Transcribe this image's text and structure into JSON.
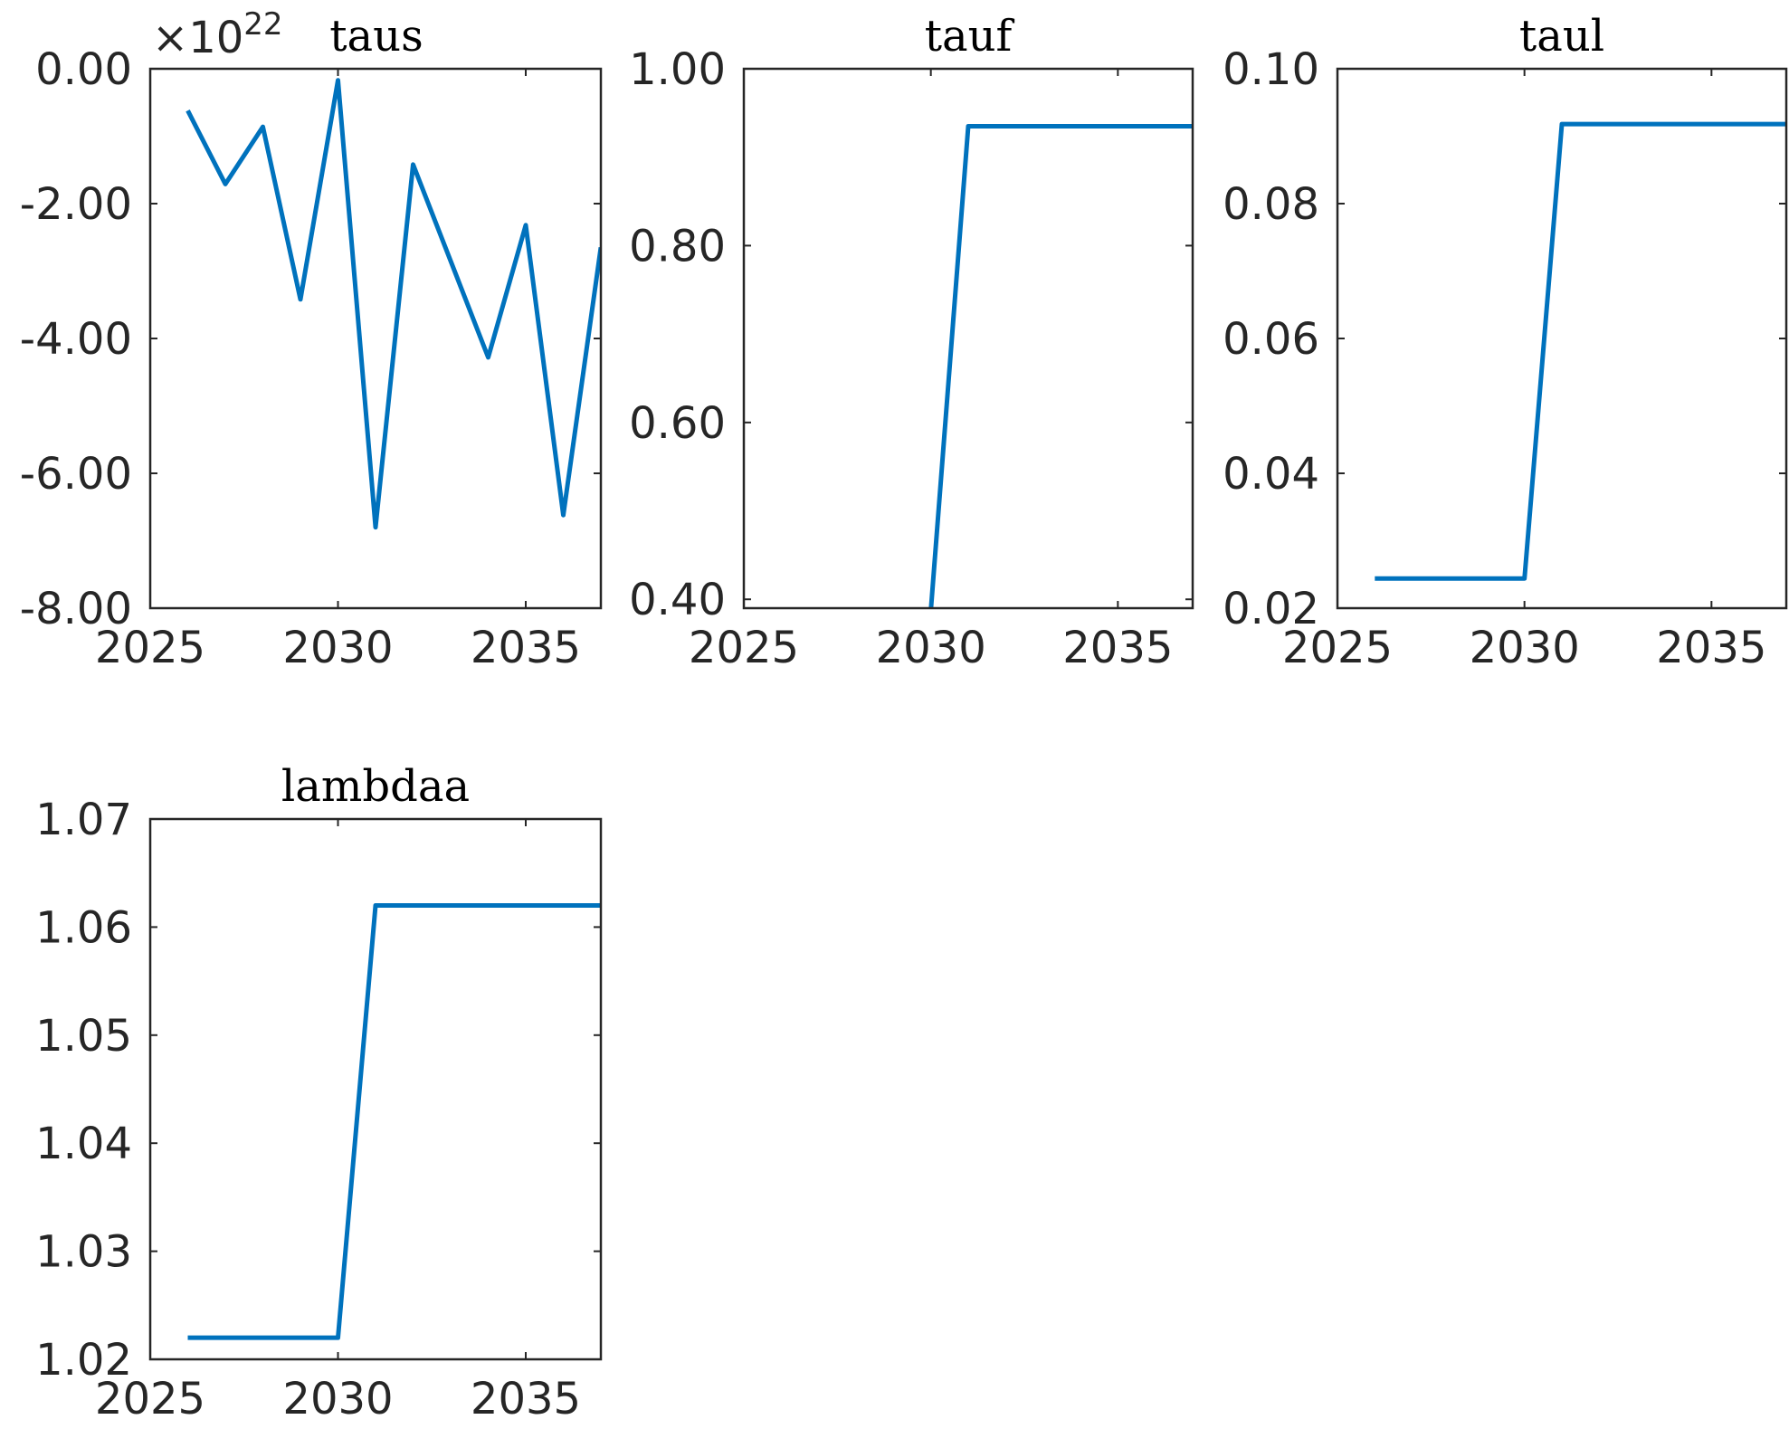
{
  "chart_data": [
    {
      "type": "line",
      "title": "taus",
      "exponent_label": "×10",
      "exponent_power": "22",
      "x": [
        2026,
        2027,
        2028,
        2029,
        2030,
        2031,
        2032,
        2033,
        2034,
        2035,
        2036,
        2037
      ],
      "series": [
        {
          "values": [
            -0.62,
            -1.71,
            -0.86,
            -3.42,
            -0.17,
            -6.8,
            -1.42,
            -2.85,
            -4.28,
            -2.32,
            -6.62,
            -2.65
          ]
        }
      ],
      "xlim": [
        2025,
        2037
      ],
      "ylim": [
        -8,
        0
      ],
      "xticks": [
        2025,
        2030,
        2035
      ],
      "xtick_labels": [
        "2025",
        "2030",
        "2035"
      ],
      "yticks": [
        0,
        -2,
        -4,
        -6,
        -8
      ],
      "ytick_labels": [
        "0.00",
        "-2.00",
        "-4.00",
        "-6.00",
        "-8.00"
      ],
      "xlabel": "",
      "ylabel": "",
      "grid": false,
      "line_color": "#0072BD"
    },
    {
      "type": "line",
      "title": "tauf",
      "x": [
        2026,
        2027,
        2028,
        2029,
        2030,
        2031,
        2032,
        2033,
        2034,
        2035,
        2036,
        2037
      ],
      "series": [
        {
          "values": [
            0.388,
            0.388,
            0.388,
            0.388,
            0.388,
            0.935,
            0.935,
            0.935,
            0.935,
            0.935,
            0.935,
            0.935
          ]
        }
      ],
      "xlim": [
        2025,
        2037
      ],
      "ylim": [
        0.39,
        1.0
      ],
      "xticks": [
        2025,
        2030,
        2035
      ],
      "xtick_labels": [
        "2025",
        "2030",
        "2035"
      ],
      "yticks": [
        1.0,
        0.8,
        0.6,
        0.4
      ],
      "ytick_labels": [
        "1.00",
        "0.80",
        "0.60",
        "0.40"
      ],
      "xlabel": "",
      "ylabel": "",
      "grid": false,
      "line_color": "#0072BD"
    },
    {
      "type": "line",
      "title": "taul",
      "x": [
        2026,
        2027,
        2028,
        2029,
        2030,
        2031,
        2032,
        2033,
        2034,
        2035,
        2036,
        2037
      ],
      "series": [
        {
          "values": [
            0.0244,
            0.0244,
            0.0244,
            0.0244,
            0.0244,
            0.0918,
            0.0918,
            0.0918,
            0.0918,
            0.0918,
            0.0918,
            0.0918
          ]
        }
      ],
      "xlim": [
        2025,
        2037
      ],
      "ylim": [
        0.02,
        0.1
      ],
      "xticks": [
        2025,
        2030,
        2035
      ],
      "xtick_labels": [
        "2025",
        "2030",
        "2035"
      ],
      "yticks": [
        0.1,
        0.08,
        0.06,
        0.04,
        0.02
      ],
      "ytick_labels": [
        "0.10",
        "0.08",
        "0.06",
        "0.04",
        "0.02"
      ],
      "xlabel": "",
      "ylabel": "",
      "grid": false,
      "line_color": "#0072BD"
    },
    {
      "type": "line",
      "title": "lambdaa",
      "x": [
        2026,
        2027,
        2028,
        2029,
        2030,
        2031,
        2032,
        2033,
        2034,
        2035,
        2036,
        2037
      ],
      "series": [
        {
          "values": [
            1.022,
            1.022,
            1.022,
            1.022,
            1.022,
            1.062,
            1.062,
            1.062,
            1.062,
            1.062,
            1.062,
            1.062
          ]
        }
      ],
      "xlim": [
        2025,
        2037
      ],
      "ylim": [
        1.02,
        1.07
      ],
      "xticks": [
        2025,
        2030,
        2035
      ],
      "xtick_labels": [
        "2025",
        "2030",
        "2035"
      ],
      "yticks": [
        1.07,
        1.06,
        1.05,
        1.04,
        1.03,
        1.02
      ],
      "ytick_labels": [
        "1.07",
        "1.06",
        "1.05",
        "1.04",
        "1.03",
        "1.02"
      ],
      "xlabel": "",
      "ylabel": "",
      "grid": false,
      "line_color": "#0072BD"
    }
  ]
}
